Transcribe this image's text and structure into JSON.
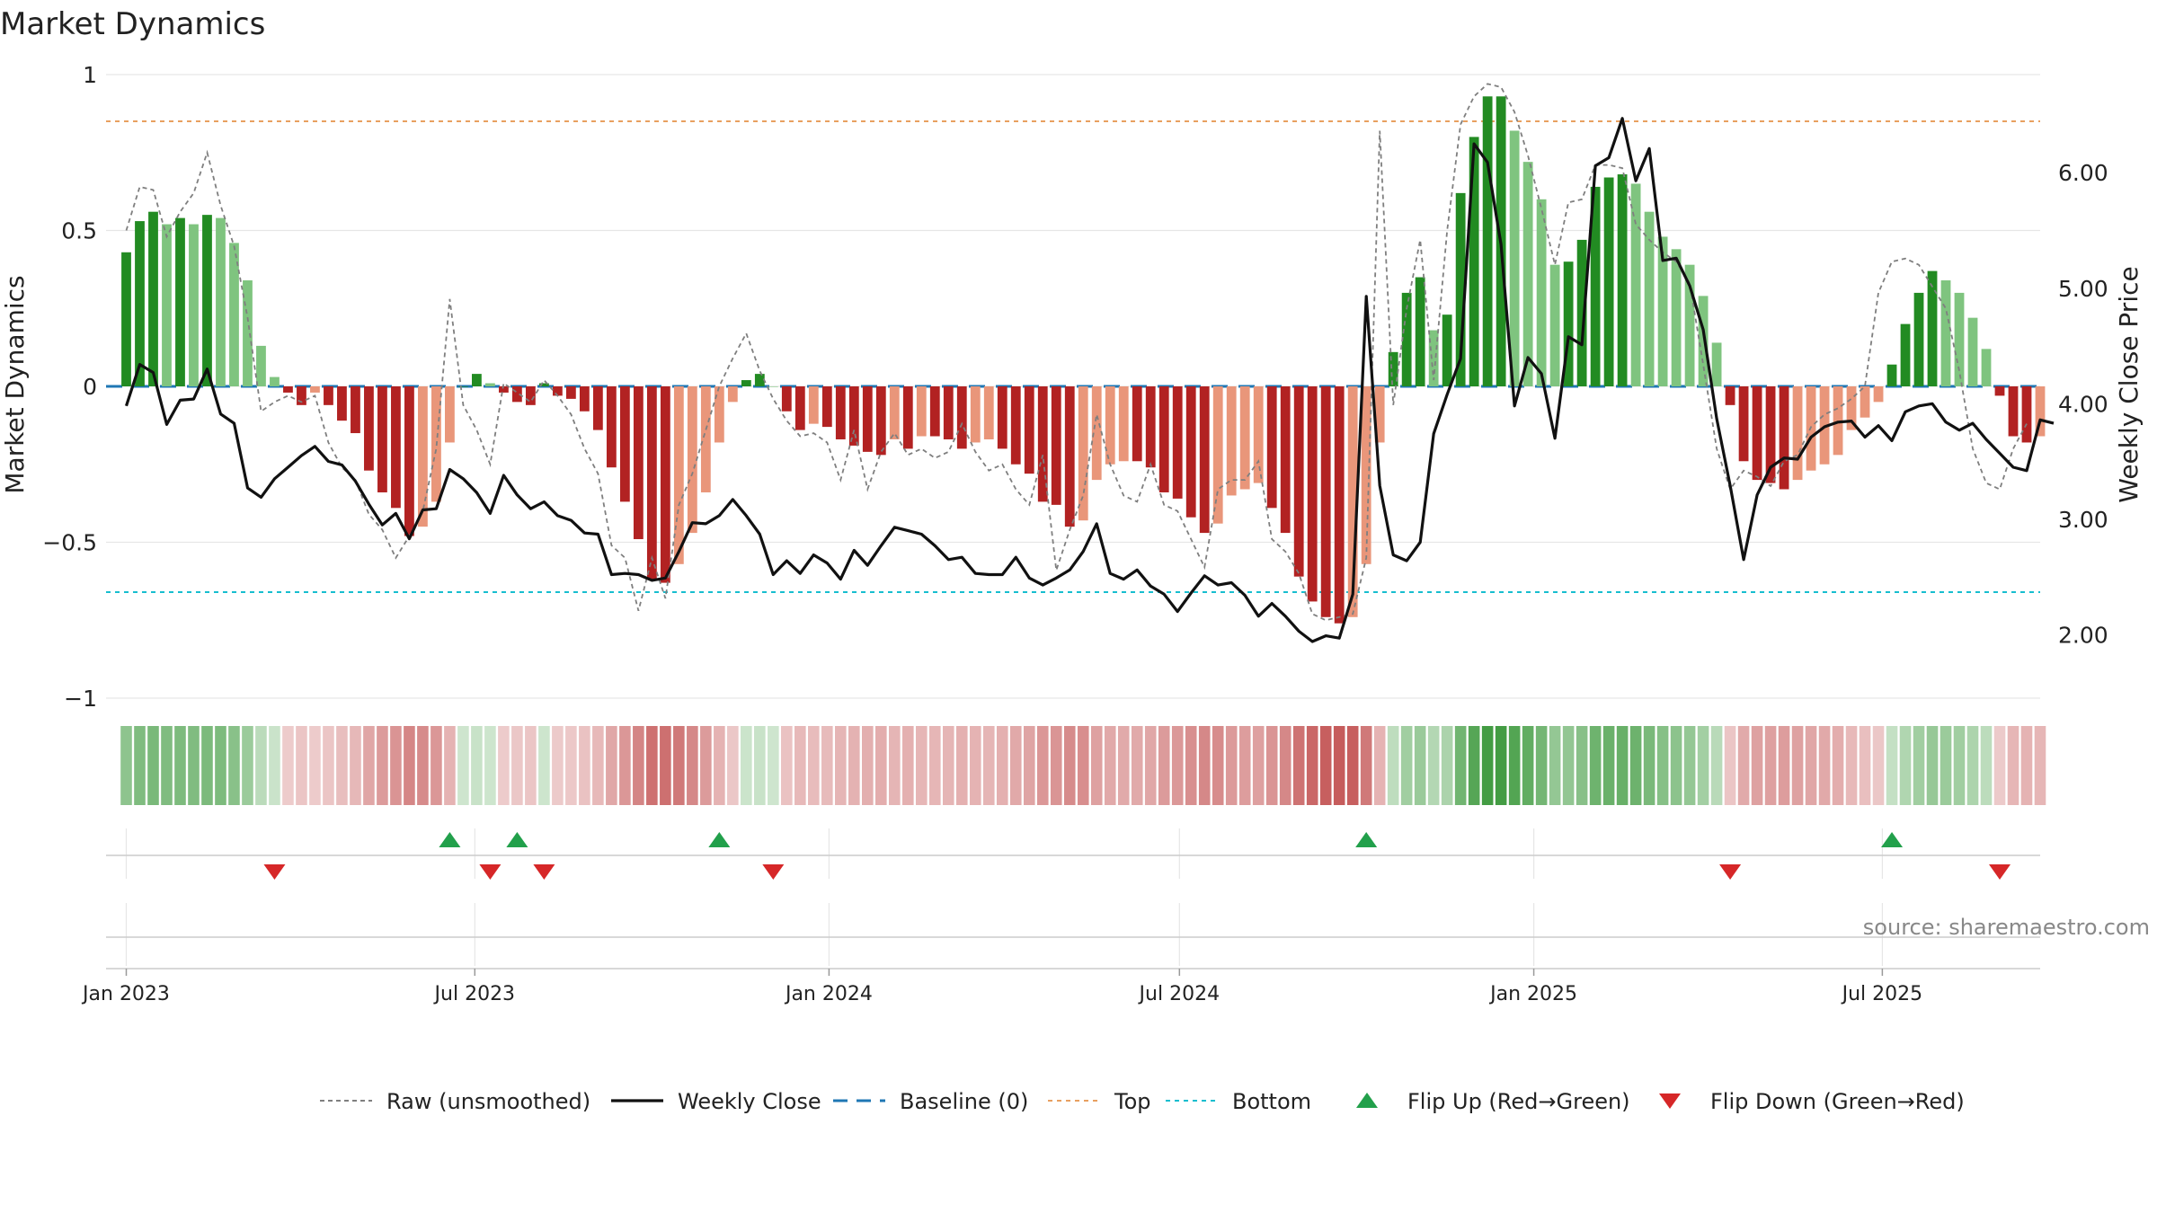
{
  "chart_data": {
    "type": "bar",
    "title": "Market Dynamics",
    "ylabel": "Market Dynamics",
    "y2label": "Weekly Close Price",
    "ylim": [
      -1,
      1
    ],
    "y2lim": [
      1.45,
      6.85
    ],
    "yticks": [
      {
        "value": 1,
        "label": "1"
      },
      {
        "value": 0.5,
        "label": "0.5"
      },
      {
        "value": 0,
        "label": "0"
      },
      {
        "value": -0.5,
        "label": "−0.5"
      },
      {
        "value": -1,
        "label": "−1"
      }
    ],
    "y2ticks": [
      {
        "value": 6.0,
        "label": "6.00"
      },
      {
        "value": 5.0,
        "label": "5.00"
      },
      {
        "value": 4.0,
        "label": "4.00"
      },
      {
        "value": 3.0,
        "label": "3.00"
      },
      {
        "value": 2.0,
        "label": "2.00"
      }
    ],
    "xticks": [
      {
        "value": 0.0,
        "label": "Jan 2023"
      },
      {
        "value": 25.86,
        "label": "Jul 2023"
      },
      {
        "value": 52.14,
        "label": "Jan 2024"
      },
      {
        "value": 78.14,
        "label": "Jul 2024"
      },
      {
        "value": 104.43,
        "label": "Jan 2025"
      },
      {
        "value": 130.29,
        "label": "Jul 2025"
      }
    ],
    "xrange": [
      -1.5,
      142.0
    ],
    "top_line": 0.85,
    "bottom_line": -0.66,
    "baseline": 0,
    "series": [
      {
        "name": "Market Dynamics",
        "values": [
          0.43,
          0.53,
          0.56,
          0.52,
          0.54,
          0.52,
          0.55,
          0.54,
          0.46,
          0.34,
          0.13,
          0.03,
          -0.02,
          -0.06,
          -0.02,
          -0.06,
          -0.11,
          -0.15,
          -0.27,
          -0.34,
          -0.39,
          -0.48,
          -0.45,
          -0.37,
          -0.18,
          0.0,
          0.04,
          0.01,
          -0.02,
          -0.05,
          -0.06,
          0.01,
          -0.03,
          -0.04,
          -0.08,
          -0.14,
          -0.26,
          -0.37,
          -0.49,
          -0.62,
          -0.63,
          -0.57,
          -0.47,
          -0.34,
          -0.18,
          -0.05,
          0.02,
          0.04,
          0.0,
          -0.08,
          -0.14,
          -0.12,
          -0.13,
          -0.17,
          -0.19,
          -0.21,
          -0.22,
          -0.17,
          -0.2,
          -0.16,
          -0.16,
          -0.17,
          -0.2,
          -0.18,
          -0.17,
          -0.2,
          -0.25,
          -0.28,
          -0.37,
          -0.38,
          -0.45,
          -0.43,
          -0.3,
          -0.25,
          -0.24,
          -0.24,
          -0.26,
          -0.34,
          -0.36,
          -0.42,
          -0.47,
          -0.44,
          -0.35,
          -0.33,
          -0.31,
          -0.39,
          -0.47,
          -0.61,
          -0.69,
          -0.74,
          -0.76,
          -0.74,
          -0.57,
          -0.18,
          0.11,
          0.3,
          0.35,
          0.18,
          0.23,
          0.62,
          0.8,
          0.93,
          0.93,
          0.82,
          0.72,
          0.6,
          0.39,
          0.4,
          0.47,
          0.64,
          0.67,
          0.68,
          0.65,
          0.56,
          0.48,
          0.44,
          0.39,
          0.29,
          0.14,
          -0.06,
          -0.24,
          -0.3,
          -0.31,
          -0.33,
          -0.3,
          -0.27,
          -0.25,
          -0.22,
          -0.14,
          -0.1,
          -0.05,
          0.07,
          0.2,
          0.3,
          0.37,
          0.34,
          0.3,
          0.22,
          0.12,
          -0.03,
          -0.16,
          -0.18,
          -0.16
        ]
      },
      {
        "name": "Raw (unsmoothed)",
        "values": [
          0.5,
          0.64,
          0.63,
          0.48,
          0.56,
          0.62,
          0.75,
          0.58,
          0.45,
          0.22,
          -0.08,
          -0.05,
          -0.03,
          -0.05,
          -0.03,
          -0.18,
          -0.26,
          -0.3,
          -0.41,
          -0.46,
          -0.55,
          -0.48,
          -0.4,
          -0.2,
          0.28,
          -0.06,
          -0.14,
          -0.25,
          0.01,
          -0.02,
          -0.05,
          0.02,
          -0.03,
          -0.09,
          -0.2,
          -0.28,
          -0.51,
          -0.55,
          -0.72,
          -0.55,
          -0.68,
          -0.38,
          -0.28,
          -0.14,
          0.0,
          0.09,
          0.17,
          0.05,
          -0.04,
          -0.11,
          -0.16,
          -0.15,
          -0.18,
          -0.3,
          -0.14,
          -0.33,
          -0.21,
          -0.15,
          -0.22,
          -0.2,
          -0.23,
          -0.21,
          -0.12,
          -0.21,
          -0.27,
          -0.25,
          -0.33,
          -0.38,
          -0.22,
          -0.59,
          -0.46,
          -0.35,
          -0.09,
          -0.25,
          -0.35,
          -0.37,
          -0.25,
          -0.38,
          -0.4,
          -0.49,
          -0.58,
          -0.33,
          -0.3,
          -0.3,
          -0.24,
          -0.49,
          -0.53,
          -0.6,
          -0.73,
          -0.75,
          -0.74,
          -0.73,
          -0.55,
          0.82,
          -0.06,
          0.25,
          0.47,
          0.02,
          0.5,
          0.84,
          0.93,
          0.97,
          0.96,
          0.88,
          0.74,
          0.57,
          0.39,
          0.59,
          0.6,
          0.71,
          0.71,
          0.7,
          0.52,
          0.47,
          0.43,
          0.4,
          0.33,
          0.07,
          -0.2,
          -0.33,
          -0.27,
          -0.29,
          -0.32,
          -0.24,
          -0.22,
          -0.13,
          -0.09,
          -0.07,
          -0.04,
          0.0,
          0.3,
          0.4,
          0.41,
          0.39,
          0.32,
          0.25,
          0.05,
          -0.2,
          -0.31,
          -0.33,
          -0.2,
          -0.12
        ]
      },
      {
        "name": "Weekly Close",
        "values": [
          3.98,
          4.34,
          4.27,
          3.82,
          4.03,
          4.04,
          4.3,
          3.91,
          3.83,
          3.27,
          3.19,
          3.35,
          3.45,
          3.55,
          3.63,
          3.5,
          3.47,
          3.33,
          3.13,
          2.95,
          3.05,
          2.83,
          3.08,
          3.09,
          3.43,
          3.35,
          3.23,
          3.05,
          3.38,
          3.21,
          3.09,
          3.15,
          3.03,
          2.99,
          2.88,
          2.87,
          2.52,
          2.53,
          2.52,
          2.47,
          2.49,
          2.72,
          2.97,
          2.96,
          3.03,
          3.17,
          3.03,
          2.87,
          2.52,
          2.64,
          2.53,
          2.69,
          2.62,
          2.48,
          2.73,
          2.6,
          2.77,
          2.93,
          2.9,
          2.87,
          2.77,
          2.65,
          2.67,
          2.53,
          2.52,
          2.52,
          2.67,
          2.49,
          2.43,
          2.49,
          2.56,
          2.72,
          2.96,
          2.53,
          2.48,
          2.56,
          2.42,
          2.35,
          2.2,
          2.36,
          2.51,
          2.43,
          2.45,
          2.34,
          2.16,
          2.27,
          2.16,
          2.03,
          1.94,
          1.99,
          1.97,
          2.35,
          4.93,
          3.29,
          2.69,
          2.64,
          2.8,
          3.74,
          4.08,
          4.39,
          6.25,
          6.09,
          5.38,
          3.98,
          4.4,
          4.26,
          3.7,
          4.58,
          4.51,
          6.06,
          6.13,
          6.47,
          5.93,
          6.21,
          5.24,
          5.26,
          5.02,
          4.64,
          3.87,
          3.29,
          2.65,
          3.21,
          3.45,
          3.53,
          3.52,
          3.71,
          3.8,
          3.84,
          3.85,
          3.71,
          3.81,
          3.68,
          3.93,
          3.98,
          4.0,
          3.84,
          3.77,
          3.83,
          3.69,
          3.57,
          3.45,
          3.42,
          3.86,
          3.83
        ]
      }
    ],
    "flip_up_weeks": [
      24,
      29,
      44,
      92,
      131
    ],
    "flip_down_weeks": [
      11,
      27,
      31,
      48,
      119,
      139
    ],
    "colors": {
      "bar_dark_green": "#228b22",
      "bar_light_green": "#7fc47f",
      "bar_dark_red": "#b22222",
      "bar_light_red": "#e9967a",
      "raw_line": "#7f7f7f",
      "close_line": "#111111",
      "baseline": "#1f77b4",
      "top_line": "#e8a060",
      "bottom_line": "#17becf",
      "flip_up": "#22a04b",
      "flip_down": "#d62728",
      "grid": "#e6e6e6"
    },
    "legend": {
      "position": "bottom-center",
      "entries": [
        {
          "key": "raw",
          "label": "Raw (unsmoothed)"
        },
        {
          "key": "close",
          "label": "Weekly Close"
        },
        {
          "key": "baseline",
          "label": "Baseline (0)"
        },
        {
          "key": "top",
          "label": "Top"
        },
        {
          "key": "bottom",
          "label": "Bottom"
        },
        {
          "key": "flip_up",
          "label": "Flip Up (Red→Green)"
        },
        {
          "key": "flip_down",
          "label": "Flip Down (Green→Red)"
        }
      ]
    }
  },
  "source_text": "source: sharemaestro.com"
}
